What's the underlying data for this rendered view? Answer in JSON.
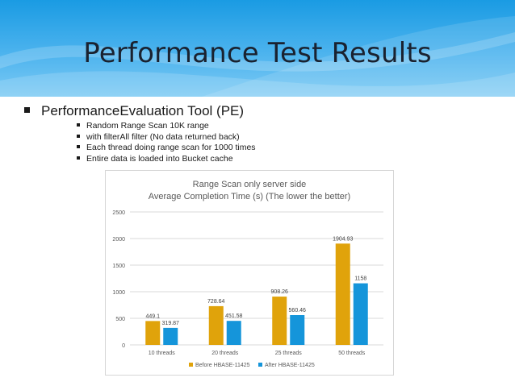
{
  "slide": {
    "title": "Performance Test Results",
    "main_bullet": "PerformanceEvaluation Tool (PE)",
    "sub_bullets": [
      "Random Range Scan 10K range",
      "with filterAll filter (No data returned back)",
      "Each thread doing range scan for 1000 times",
      "Entire data is loaded into Bucket cache"
    ]
  },
  "colors": {
    "before": "#E0A30B",
    "after": "#1595DA",
    "header": "#1a9be3"
  },
  "chart_data": {
    "type": "bar",
    "title": "Range Scan only server side",
    "subtitle": "Average Completion Time (s) (The lower the better)",
    "categories": [
      "10 threads",
      "20 threads",
      "25 threads",
      "50 threads"
    ],
    "series": [
      {
        "name": "Before HBASE-11425",
        "values": [
          449.1,
          728.64,
          908.26,
          1904.93
        ],
        "labels": [
          "449.1",
          "728.64",
          "908.26",
          "1904.93"
        ]
      },
      {
        "name": "After HBASE-11425",
        "values": [
          319.87,
          451.58,
          560.46,
          1158
        ],
        "labels": [
          "319.87",
          "451.58",
          "560.46",
          "1158"
        ]
      }
    ],
    "y_ticks": [
      "0",
      "500",
      "1000",
      "1500",
      "2000",
      "2500"
    ],
    "ylim": [
      0,
      2500
    ],
    "grid": true,
    "legend_position": "bottom"
  }
}
